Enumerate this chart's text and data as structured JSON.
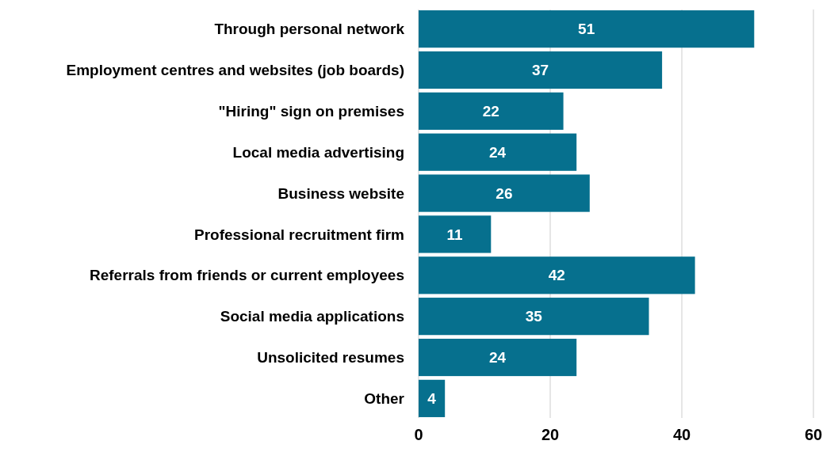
{
  "chart_data": {
    "type": "bar",
    "orientation": "horizontal",
    "categories": [
      "Through personal network",
      "Employment centres and websites (job boards)",
      "\"Hiring\" sign on premises",
      "Local media advertising ",
      "Business website",
      "Professional recruitment firm",
      "Referrals from friends or current employees",
      "Social media applications",
      "Unsolicited resumes",
      "Other"
    ],
    "values": [
      51,
      37,
      22,
      24,
      26,
      11,
      42,
      35,
      24,
      4
    ],
    "color": "#06708e",
    "xlim": [
      0,
      60
    ],
    "xticks": [
      0,
      20,
      40,
      60
    ],
    "grid": "x",
    "data_labels": true
  }
}
